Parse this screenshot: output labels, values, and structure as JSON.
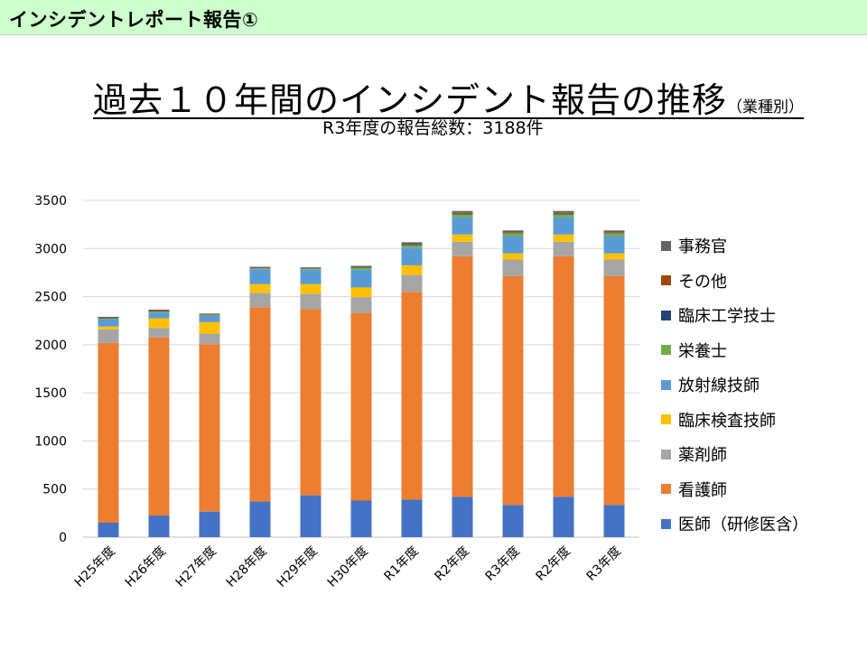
{
  "header": {
    "title": "インシデントレポート報告①"
  },
  "title": {
    "main": "過去１０年間のインシデント報告の推移",
    "suffix": "（業種別）"
  },
  "subtitle": "R3年度の報告総数：3188件",
  "colors": {
    "header_bg": "#ccffcc",
    "grid": "#d9d9d9",
    "axis": "#bfbfbf"
  },
  "chart_data": {
    "type": "bar",
    "stacked": true,
    "categories": [
      "H25年度",
      "H26年度",
      "H27年度",
      "H28年度",
      "H29年度",
      "H30年度",
      "R1年度",
      "R2年度",
      "R3年度",
      "R2年度",
      "R3年度"
    ],
    "ylim": [
      0,
      3500
    ],
    "yticks": [
      0,
      500,
      1000,
      1500,
      2000,
      2500,
      3000,
      3500
    ],
    "legend_position": "right",
    "grid": true,
    "series": [
      {
        "name": "医師（研修医含）",
        "color": "#4472c4",
        "values": [
          150,
          225,
          265,
          370,
          435,
          380,
          390,
          420,
          335,
          420,
          335
        ]
      },
      {
        "name": "看護師",
        "color": "#ed7d31",
        "values": [
          1870,
          1850,
          1740,
          2020,
          1935,
          1950,
          2160,
          2500,
          2380,
          2500,
          2380
        ]
      },
      {
        "name": "薬剤師",
        "color": "#a5a5a5",
        "values": [
          140,
          100,
          110,
          150,
          160,
          165,
          175,
          150,
          170,
          150,
          170
        ]
      },
      {
        "name": "臨床検査技師",
        "color": "#ffc000",
        "values": [
          30,
          100,
          120,
          90,
          100,
          100,
          100,
          75,
          65,
          75,
          65
        ]
      },
      {
        "name": "放射線技師",
        "color": "#5b9bd5",
        "values": [
          75,
          60,
          65,
          155,
          150,
          185,
          185,
          180,
          175,
          180,
          175
        ]
      },
      {
        "name": "栄養士",
        "color": "#70ad47",
        "values": [
          10,
          10,
          10,
          10,
          10,
          20,
          25,
          30,
          30,
          30,
          30
        ]
      },
      {
        "name": "臨床工学技士",
        "color": "#264478",
        "values": [
          5,
          5,
          5,
          5,
          5,
          5,
          5,
          5,
          5,
          5,
          5
        ]
      },
      {
        "name": "その他",
        "color": "#9e480e",
        "values": [
          5,
          5,
          5,
          5,
          5,
          5,
          5,
          10,
          10,
          10,
          10
        ]
      },
      {
        "name": "事務官",
        "color": "#636363",
        "values": [
          5,
          10,
          5,
          5,
          5,
          10,
          20,
          20,
          18,
          20,
          18
        ]
      }
    ]
  }
}
